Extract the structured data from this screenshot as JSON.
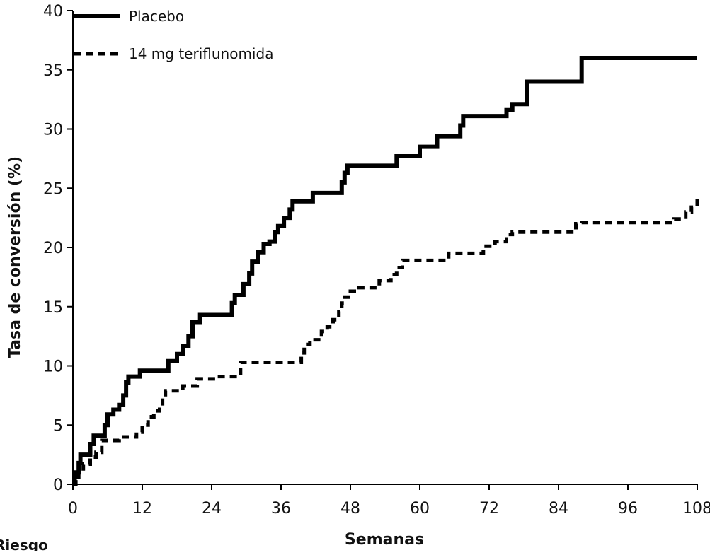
{
  "chart_data": {
    "type": "line",
    "xlabel": "Semanas",
    "ylabel": "Tasa de conversión (%)",
    "xlim": [
      0,
      108
    ],
    "ylim": [
      0,
      40
    ],
    "xticks": [
      0,
      12,
      24,
      36,
      48,
      60,
      72,
      84,
      96,
      108
    ],
    "yticks": [
      0,
      5,
      10,
      15,
      20,
      25,
      30,
      35,
      40
    ],
    "grid": false,
    "legend": "top-left",
    "step": true,
    "series": [
      {
        "name": "Placebo",
        "style": "solid",
        "color": "#000000",
        "points": [
          [
            0,
            0
          ],
          [
            0.3,
            0.6
          ],
          [
            0.6,
            1
          ],
          [
            1,
            1.8
          ],
          [
            1.3,
            2.5
          ],
          [
            2.5,
            2.5
          ],
          [
            3,
            3.4
          ],
          [
            3.6,
            4.1
          ],
          [
            5,
            4.1
          ],
          [
            5.5,
            5
          ],
          [
            6,
            5.9
          ],
          [
            7,
            6.3
          ],
          [
            8,
            6.7
          ],
          [
            8.7,
            7.5
          ],
          [
            9.2,
            8.6
          ],
          [
            9.6,
            9.1
          ],
          [
            11,
            9.1
          ],
          [
            11.6,
            9.6
          ],
          [
            15.5,
            9.6
          ],
          [
            16.5,
            10.4
          ],
          [
            18,
            11
          ],
          [
            19,
            11.7
          ],
          [
            20,
            12.5
          ],
          [
            20.7,
            13.7
          ],
          [
            22,
            14.3
          ],
          [
            27,
            14.3
          ],
          [
            27.5,
            15.3
          ],
          [
            28,
            16
          ],
          [
            29.5,
            16.9
          ],
          [
            30.5,
            17.8
          ],
          [
            31,
            18.8
          ],
          [
            32,
            19.6
          ],
          [
            33,
            20.3
          ],
          [
            34,
            20.5
          ],
          [
            35,
            21.3
          ],
          [
            35.5,
            21.8
          ],
          [
            36.5,
            22.5
          ],
          [
            37.5,
            23.2
          ],
          [
            38,
            23.9
          ],
          [
            41,
            23.9
          ],
          [
            41.5,
            24.6
          ],
          [
            46,
            24.6
          ],
          [
            46.5,
            25.5
          ],
          [
            47,
            26.3
          ],
          [
            47.5,
            26.9
          ],
          [
            55.5,
            26.9
          ],
          [
            56,
            27.7
          ],
          [
            59.5,
            27.7
          ],
          [
            60,
            28.5
          ],
          [
            62.5,
            28.5
          ],
          [
            63,
            29.4
          ],
          [
            66.5,
            29.4
          ],
          [
            67,
            30.3
          ],
          [
            67.5,
            31.1
          ],
          [
            73.5,
            31.1
          ],
          [
            75,
            31.6
          ],
          [
            76,
            32.1
          ],
          [
            77,
            32.1
          ],
          [
            78.5,
            34
          ],
          [
            87,
            34
          ],
          [
            88,
            36
          ],
          [
            108,
            36
          ]
        ]
      },
      {
        "name": "14 mg teriflunomida",
        "style": "dashed",
        "color": "#000000",
        "points": [
          [
            0,
            0
          ],
          [
            0.5,
            0.6
          ],
          [
            1,
            1.1
          ],
          [
            1.8,
            1.7
          ],
          [
            2.5,
            1.7
          ],
          [
            3,
            2.3
          ],
          [
            4,
            2.7
          ],
          [
            5,
            3.7
          ],
          [
            7,
            3.7
          ],
          [
            8,
            4
          ],
          [
            10,
            4
          ],
          [
            11,
            4.4
          ],
          [
            12,
            5
          ],
          [
            13,
            5.7
          ],
          [
            14,
            6.2
          ],
          [
            15,
            6.8
          ],
          [
            15.5,
            7.3
          ],
          [
            16,
            7.9
          ],
          [
            18,
            7.9
          ],
          [
            19,
            8.3
          ],
          [
            20.5,
            8.3
          ],
          [
            21.5,
            8.9
          ],
          [
            24,
            8.9
          ],
          [
            25,
            9.1
          ],
          [
            28.5,
            9.1
          ],
          [
            29,
            10.3
          ],
          [
            39,
            10.3
          ],
          [
            39.5,
            11.1
          ],
          [
            40,
            11.8
          ],
          [
            41,
            12.2
          ],
          [
            42,
            12.2
          ],
          [
            43,
            12.9
          ],
          [
            44,
            13.3
          ],
          [
            45,
            13.9
          ],
          [
            46,
            14.6
          ],
          [
            46.5,
            15.3
          ],
          [
            47,
            15.8
          ],
          [
            48,
            16.3
          ],
          [
            49,
            16.6
          ],
          [
            52,
            16.6
          ],
          [
            53,
            17.2
          ],
          [
            55,
            17.7
          ],
          [
            56,
            18.3
          ],
          [
            57,
            18.9
          ],
          [
            64,
            18.9
          ],
          [
            65,
            19.5
          ],
          [
            70,
            19.5
          ],
          [
            71,
            20.1
          ],
          [
            73,
            20.5
          ],
          [
            75,
            21.1
          ],
          [
            76,
            21.3
          ],
          [
            86,
            21.3
          ],
          [
            87,
            22
          ],
          [
            88,
            22.1
          ],
          [
            103.5,
            22.1
          ],
          [
            104,
            22.4
          ],
          [
            105,
            22.4
          ],
          [
            106,
            23
          ],
          [
            107,
            23.4
          ],
          [
            108,
            24.1
          ]
        ]
      }
    ]
  },
  "edge_fragment": "Riesgo"
}
